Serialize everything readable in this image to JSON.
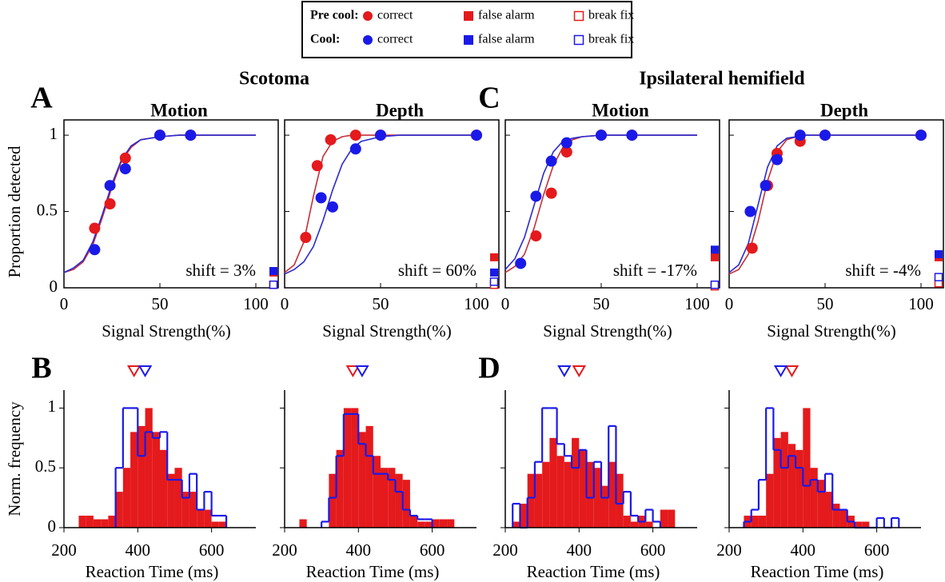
{
  "figure": {
    "groups": [
      "Scotoma",
      "Ipsilateral hemifield"
    ],
    "panel_labels": [
      "A",
      "B",
      "C",
      "D"
    ]
  },
  "legend": {
    "rows": [
      {
        "label": "Pre cool:",
        "color": "#e41a1c",
        "entries": [
          "correct",
          "false alarm",
          "break fix"
        ]
      },
      {
        "label": "Cool:",
        "color": "#1a1ae8",
        "entries": [
          "correct",
          "false alarm",
          "break fix"
        ]
      }
    ]
  },
  "chart_data": [
    {
      "type": "scatter",
      "title": "Motion",
      "xlabel": "Signal Strength(%)",
      "ylabel": "Proportion detected",
      "annotation": "shift = 3%",
      "xlim": [
        0,
        100
      ],
      "xticks": [
        0,
        50,
        100
      ],
      "ylim": [
        0,
        1.1
      ],
      "yticks": [
        0,
        0.5,
        1
      ],
      "ytick_labels": true,
      "fit_x": [
        0,
        5,
        10,
        15,
        20,
        25,
        30,
        35,
        40,
        50,
        60,
        80,
        100
      ],
      "series": [
        {
          "color": "#e41a1c",
          "line_color": "#c4303a",
          "x": [
            16,
            24,
            32,
            50,
            66
          ],
          "values": [
            0.39,
            0.55,
            0.85,
            1,
            1
          ],
          "fit": [
            0.1,
            0.12,
            0.17,
            0.28,
            0.46,
            0.66,
            0.83,
            0.92,
            0.97,
            0.99,
            1,
            1,
            1
          ],
          "false_alarm": 0.1,
          "break_fix": 0.02
        },
        {
          "color": "#1a1ae8",
          "line_color": "#2a2ad0",
          "x": [
            16,
            24,
            32,
            50,
            66
          ],
          "values": [
            0.25,
            0.67,
            0.78,
            1,
            1
          ],
          "fit": [
            0.1,
            0.13,
            0.18,
            0.3,
            0.48,
            0.68,
            0.84,
            0.93,
            0.97,
            0.99,
            1,
            1,
            1
          ],
          "false_alarm": 0.11,
          "break_fix": 0.02
        }
      ]
    },
    {
      "type": "scatter",
      "title": "Depth",
      "xlabel": "Signal Strength(%)",
      "annotation": "shift = 60%",
      "xlim": [
        0,
        100
      ],
      "xticks": [
        0,
        50,
        100
      ],
      "ylim": [
        0,
        1.1
      ],
      "yticks": [
        0,
        0.5,
        1
      ],
      "ytick_labels": false,
      "fit_x": [
        0,
        5,
        10,
        15,
        20,
        25,
        30,
        35,
        40,
        50,
        60,
        80,
        100
      ],
      "series": [
        {
          "color": "#e41a1c",
          "line_color": "#c4303a",
          "x": [
            11,
            17,
            24,
            37,
            50,
            100
          ],
          "values": [
            0.33,
            0.8,
            0.97,
            1,
            1,
            1
          ],
          "fit": [
            0.1,
            0.15,
            0.3,
            0.6,
            0.86,
            0.96,
            0.99,
            1,
            1,
            1,
            1,
            1,
            1
          ],
          "false_alarm": 0.2,
          "break_fix": 0.02
        },
        {
          "color": "#1a1ae8",
          "line_color": "#2a2ad0",
          "x": [
            19,
            25,
            37,
            50,
            100
          ],
          "values": [
            0.59,
            0.53,
            0.91,
            1,
            1
          ],
          "fit": [
            0.09,
            0.12,
            0.17,
            0.27,
            0.44,
            0.64,
            0.81,
            0.91,
            0.96,
            0.99,
            1,
            1,
            1
          ],
          "false_alarm": 0.1,
          "break_fix": 0.04
        }
      ]
    },
    {
      "type": "scatter",
      "title": "Motion",
      "xlabel": "Signal Strength(%)",
      "annotation": "shift = -17%",
      "xlim": [
        0,
        100
      ],
      "xticks": [
        0,
        50,
        100
      ],
      "ylim": [
        0,
        1.1
      ],
      "yticks": [
        0,
        0.5,
        1
      ],
      "ytick_labels": false,
      "fit_x": [
        0,
        5,
        10,
        15,
        20,
        25,
        30,
        35,
        40,
        50,
        60,
        80,
        100
      ],
      "series": [
        {
          "color": "#e41a1c",
          "line_color": "#c4303a",
          "x": [
            16,
            24,
            32,
            50,
            66
          ],
          "values": [
            0.34,
            0.62,
            0.89,
            1,
            1
          ],
          "fit": [
            0.1,
            0.14,
            0.22,
            0.39,
            0.61,
            0.8,
            0.92,
            0.97,
            0.99,
            1,
            1,
            1,
            1
          ],
          "false_alarm": 0.2,
          "break_fix": 0.01
        },
        {
          "color": "#1a1ae8",
          "line_color": "#2a2ad0",
          "x": [
            8,
            16,
            24,
            32,
            50,
            66
          ],
          "values": [
            0.16,
            0.6,
            0.83,
            0.95,
            1,
            1
          ],
          "fit": [
            0.12,
            0.19,
            0.33,
            0.54,
            0.75,
            0.89,
            0.96,
            0.98,
            0.99,
            1,
            1,
            1,
            1
          ],
          "false_alarm": 0.25,
          "break_fix": 0.02
        }
      ]
    },
    {
      "type": "scatter",
      "title": "Depth",
      "xlabel": "Signal Strength(%)",
      "annotation": "shift = -4%",
      "xlim": [
        0,
        100
      ],
      "xticks": [
        0,
        50,
        100
      ],
      "ylim": [
        0,
        1.1
      ],
      "yticks": [
        0,
        0.5,
        1
      ],
      "ytick_labels": false,
      "fit_x": [
        0,
        5,
        10,
        15,
        20,
        25,
        30,
        35,
        40,
        50,
        60,
        80,
        100
      ],
      "series": [
        {
          "color": "#e41a1c",
          "line_color": "#c4303a",
          "x": [
            12,
            20,
            25,
            37,
            50,
            100
          ],
          "values": [
            0.26,
            0.67,
            0.88,
            0.96,
            1,
            1
          ],
          "fit": [
            0.09,
            0.12,
            0.22,
            0.43,
            0.7,
            0.89,
            0.97,
            0.99,
            1,
            1,
            1,
            1,
            1
          ],
          "false_alarm": 0.2,
          "break_fix": 0.03
        },
        {
          "color": "#1a1ae8",
          "line_color": "#2a2ad0",
          "x": [
            11,
            19,
            25,
            37,
            50,
            100
          ],
          "values": [
            0.5,
            0.67,
            0.84,
            1,
            1,
            1
          ],
          "fit": [
            0.1,
            0.15,
            0.29,
            0.54,
            0.79,
            0.93,
            0.98,
            0.99,
            1,
            1,
            1,
            1,
            1
          ],
          "false_alarm": 0.22,
          "break_fix": 0.07
        }
      ]
    },
    {
      "type": "histogram",
      "xlabel": "Reaction Time (ms)",
      "ylabel": "Norm. frequency",
      "xlim": [
        200,
        720
      ],
      "xticks": [
        200,
        400,
        600
      ],
      "ylim": [
        0,
        1.15
      ],
      "yticks": [
        0,
        0.5,
        1
      ],
      "ytick_labels": true,
      "series": [
        {
          "color": "#e41a1c",
          "style": "filled",
          "mean": 390,
          "bins": [
            240,
            260,
            280,
            300,
            320,
            340,
            360,
            380,
            400,
            420,
            440,
            460,
            480,
            500,
            520,
            540,
            560,
            580,
            600,
            620,
            640
          ],
          "values": [
            0.1,
            0.1,
            0.07,
            0.07,
            0.1,
            0.3,
            0.5,
            0.8,
            0.85,
            1,
            0.8,
            0.65,
            0.45,
            0.5,
            0.3,
            0.3,
            0.15,
            0.15,
            0.05,
            0.05
          ]
        },
        {
          "color": "#1a1ae8",
          "style": "step",
          "mean": 420,
          "bins": [
            340,
            360,
            380,
            400,
            420,
            440,
            460,
            480,
            500,
            520,
            540,
            560,
            580,
            600,
            620,
            640
          ],
          "values": [
            0.5,
            1,
            1,
            0.6,
            0.8,
            0.75,
            0.8,
            0.4,
            0.4,
            0.25,
            0.45,
            0.15,
            0.3,
            0.1,
            0.1
          ]
        }
      ]
    },
    {
      "type": "histogram",
      "xlabel": "Reaction Time (ms)",
      "xlim": [
        200,
        720
      ],
      "xticks": [
        200,
        400,
        600
      ],
      "ylim": [
        0,
        1.15
      ],
      "yticks": [
        0,
        0.5,
        1
      ],
      "ytick_labels": false,
      "series": [
        {
          "color": "#e41a1c",
          "style": "filled",
          "mean": 385,
          "bins": [
            240,
            260,
            280,
            300,
            320,
            340,
            360,
            380,
            400,
            420,
            440,
            460,
            480,
            500,
            520,
            540,
            560,
            580,
            600,
            620,
            640,
            660
          ],
          "values": [
            0.07,
            0,
            0,
            0,
            0.45,
            0.65,
            1,
            1,
            0.8,
            0.85,
            0.6,
            0.5,
            0.5,
            0.45,
            0.4,
            0.1,
            0.05,
            0.05,
            0.07,
            0.07,
            0.07
          ]
        },
        {
          "color": "#1a1ae8",
          "style": "step",
          "mean": 410,
          "bins": [
            300,
            320,
            340,
            360,
            380,
            400,
            420,
            440,
            460,
            480,
            500,
            520,
            540,
            560,
            580,
            600
          ],
          "values": [
            0.05,
            0.25,
            0.6,
            0.95,
            0.95,
            0.7,
            0.6,
            0.45,
            0.45,
            0.4,
            0.3,
            0.15,
            0.1,
            0.07,
            0.07
          ]
        }
      ]
    },
    {
      "type": "histogram",
      "xlabel": "Reaction Time (ms)",
      "xlim": [
        200,
        720
      ],
      "xticks": [
        200,
        400,
        600
      ],
      "ylim": [
        0,
        1.15
      ],
      "yticks": [
        0,
        0.5,
        1
      ],
      "ytick_labels": false,
      "series": [
        {
          "color": "#e41a1c",
          "style": "filled",
          "mean": 400,
          "bins": [
            220,
            240,
            260,
            280,
            300,
            320,
            340,
            360,
            380,
            400,
            420,
            440,
            460,
            480,
            500,
            520,
            540,
            560,
            580,
            600,
            620,
            640,
            660
          ],
          "values": [
            0.05,
            0.2,
            0.45,
            0.45,
            0.55,
            0.75,
            0.6,
            0.55,
            0.75,
            0.65,
            0.55,
            0.5,
            0.35,
            0.55,
            0.45,
            0.1,
            0.05,
            0.1,
            0.05,
            0,
            0.15,
            0.15
          ]
        },
        {
          "color": "#1a1ae8",
          "style": "step",
          "mean": 360,
          "bins": [
            220,
            240,
            260,
            280,
            300,
            320,
            340,
            360,
            380,
            400,
            420,
            440,
            460,
            480,
            500,
            520,
            540,
            560,
            580,
            600,
            620
          ],
          "values": [
            0.2,
            0,
            0.25,
            0.55,
            1,
            1,
            0.7,
            0.6,
            0.5,
            0.65,
            0.25,
            0.55,
            0.25,
            0.85,
            0.2,
            0.3,
            0.1,
            0.05,
            0.15,
            0.05
          ]
        }
      ]
    },
    {
      "type": "histogram",
      "xlabel": "Reaction Time (ms)",
      "xlim": [
        200,
        720
      ],
      "xticks": [
        200,
        400,
        600
      ],
      "ylim": [
        0,
        1.15
      ],
      "yticks": [
        0,
        0.5,
        1
      ],
      "ytick_labels": false,
      "series": [
        {
          "color": "#e41a1c",
          "style": "filled",
          "mean": 370,
          "bins": [
            240,
            260,
            280,
            300,
            320,
            340,
            360,
            380,
            400,
            420,
            440,
            460,
            480,
            500,
            520,
            540,
            560,
            580
          ],
          "values": [
            0.1,
            0.1,
            0.1,
            0.45,
            0.75,
            0.8,
            0.7,
            0.65,
            1,
            0.5,
            0.4,
            0.3,
            0.2,
            0.15,
            0.1,
            0.05,
            0.05
          ]
        },
        {
          "color": "#1a1ae8",
          "style": "step",
          "mean": 340,
          "bins": [
            240,
            260,
            280,
            300,
            320,
            340,
            360,
            380,
            400,
            420,
            440,
            460,
            480,
            500,
            520,
            540,
            560,
            580,
            600,
            620,
            640,
            660
          ],
          "values": [
            0.05,
            0.15,
            0.4,
            1,
            0.65,
            0.5,
            0.6,
            0.5,
            0.35,
            0.4,
            0.3,
            0.45,
            0.15,
            0.15,
            0.05,
            0,
            0,
            0,
            0.08,
            0,
            0.08
          ]
        }
      ]
    }
  ]
}
